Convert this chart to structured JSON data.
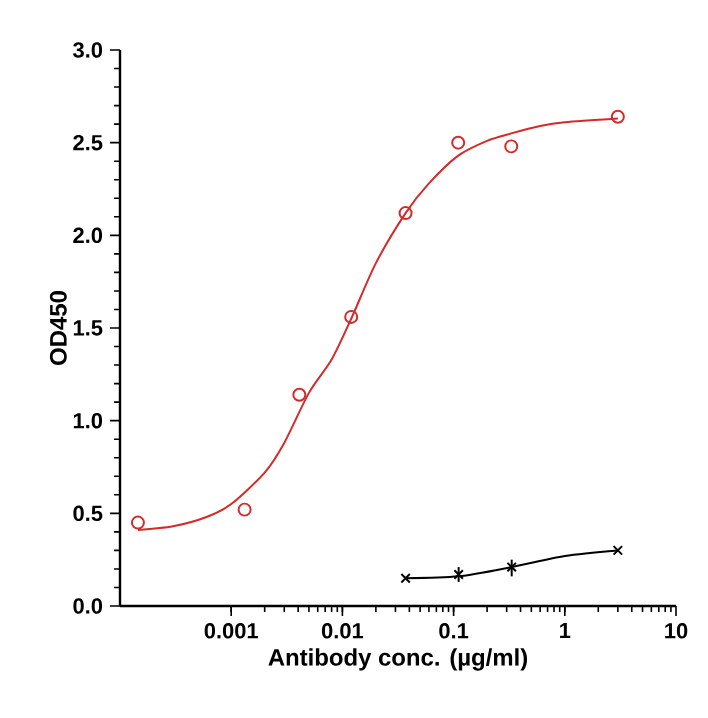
{
  "chart_data": {
    "type": "scatter",
    "xlabel": "Antibody conc. (µg/ml)",
    "ylabel": "OD450",
    "log": "x",
    "xlim": [
      0.0001,
      10
    ],
    "xticks": [
      0.001,
      0.01,
      0.1,
      1,
      10
    ],
    "ylim": [
      0,
      3
    ],
    "yticks": [
      {
        "value": 0,
        "label": "0.0"
      },
      {
        "value": 0.5,
        "label": "0.5"
      },
      {
        "value": 1,
        "label": "1.0"
      },
      {
        "value": 1.5,
        "label": "1.5"
      },
      {
        "value": 2,
        "label": "2.0"
      },
      {
        "value": 2.5,
        "label": "2.5"
      },
      {
        "value": 3,
        "label": "3.0"
      }
    ],
    "series": [
      {
        "color": "#d42a2a",
        "marker": "circle",
        "x": [
          0.000145,
          0.00132,
          0.0041,
          0.012,
          0.037,
          0.11,
          0.33,
          3.0
        ],
        "values": [
          0.45,
          0.52,
          1.14,
          1.56,
          2.12,
          2.5,
          2.48,
          2.64
        ]
      },
      {
        "type": "line",
        "color": "#d42a2a",
        "marker": "none",
        "x": [
          0.000145,
          0.0003,
          0.0006,
          0.001,
          0.002,
          0.003,
          0.005,
          0.008,
          0.012,
          0.02,
          0.037,
          0.06,
          0.11,
          0.2,
          0.33,
          0.6,
          1,
          3
        ],
        "values": [
          0.41,
          0.43,
          0.48,
          0.55,
          0.72,
          0.88,
          1.15,
          1.33,
          1.55,
          1.85,
          2.12,
          2.28,
          2.43,
          2.51,
          2.55,
          2.59,
          2.61,
          2.63
        ]
      },
      {
        "color": "#000000",
        "marker": "cross",
        "x": [
          0.037,
          0.111,
          0.333,
          3.0
        ],
        "values": [
          0.15,
          0.17,
          0.21,
          0.3
        ],
        "errors": [
          null,
          [
            0.13,
            0.21
          ],
          [
            0.16,
            0.25
          ],
          null
        ]
      },
      {
        "type": "line",
        "color": "#000000",
        "marker": "none",
        "x": [
          0.037,
          0.111,
          0.333,
          1,
          3
        ],
        "values": [
          0.15,
          0.16,
          0.21,
          0.27,
          0.3
        ]
      }
    ]
  }
}
